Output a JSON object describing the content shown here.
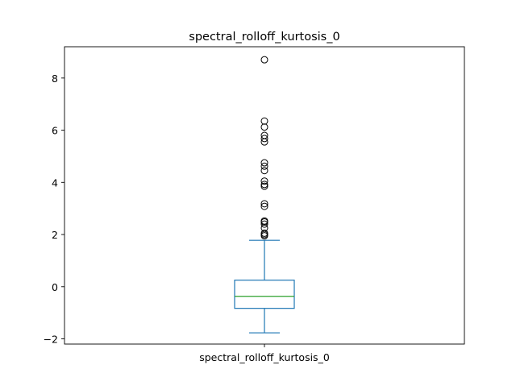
{
  "chart_data": {
    "type": "box",
    "title": "spectral_rolloff_kurtosis_0",
    "categories": [
      "spectral_rolloff_kurtosis_0"
    ],
    "boxes": [
      {
        "name": "spectral_rolloff_kurtosis_0",
        "whisker_low": -1.77,
        "q1": -0.83,
        "median": -0.37,
        "q3": 0.25,
        "whisker_high": 1.78,
        "outliers": [
          1.95,
          2.0,
          2.05,
          2.25,
          2.4,
          2.48,
          2.52,
          3.08,
          3.18,
          3.85,
          3.92,
          4.05,
          4.45,
          4.62,
          4.75,
          5.55,
          5.68,
          5.8,
          6.12,
          6.35,
          8.7
        ]
      }
    ],
    "ylim": [
      -2.2,
      9.2
    ],
    "yticks": [
      -2,
      0,
      2,
      4,
      6,
      8
    ],
    "ytick_labels": [
      "−2",
      "0",
      "2",
      "4",
      "6",
      "8"
    ],
    "grid": false,
    "colors": {
      "box": "#1f77b4",
      "median": "#2ca02c",
      "outlier": "#000000",
      "axes": "#000000"
    }
  }
}
